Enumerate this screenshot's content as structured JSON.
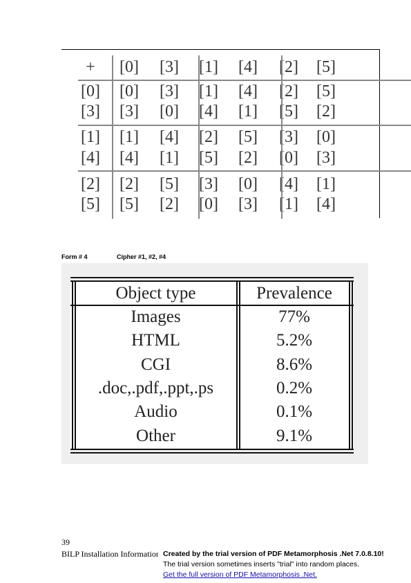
{
  "group_table": {
    "header": [
      "+",
      "[0]",
      "[3]",
      "[1]",
      "[4]",
      "[2]",
      "[5]"
    ],
    "rows": [
      [
        "[0]",
        "[0]",
        "[3]",
        "[1]",
        "[4]",
        "[2]",
        "[5]"
      ],
      [
        "[3]",
        "[3]",
        "[0]",
        "[4]",
        "[1]",
        "[5]",
        "[2]"
      ],
      [
        "[1]",
        "[1]",
        "[4]",
        "[2]",
        "[5]",
        "[3]",
        "[0]"
      ],
      [
        "[4]",
        "[4]",
        "[1]",
        "[5]",
        "[2]",
        "[0]",
        "[3]"
      ],
      [
        "[2]",
        "[2]",
        "[5]",
        "[3]",
        "[0]",
        "[4]",
        "[1]"
      ],
      [
        "[5]",
        "[5]",
        "[2]",
        "[0]",
        "[3]",
        "[1]",
        "[4]"
      ]
    ]
  },
  "caption": {
    "form": "Form # 4",
    "cipher": "Cipher #1, #2, #4"
  },
  "object_table": {
    "headers": [
      "Object type",
      "Prevalence"
    ],
    "rows": [
      [
        "Images",
        "77%"
      ],
      [
        "HTML",
        "5.2%"
      ],
      [
        "CGI",
        "8.6%"
      ],
      [
        ".doc,.pdf,.ppt,.ps",
        "0.2%"
      ],
      [
        "Audio",
        "0.1%"
      ],
      [
        "Other",
        "9.1%"
      ]
    ]
  },
  "footer": {
    "page_number": "39",
    "title": "BILP Installation Information",
    "trial_line1": "Created by the trial version of PDF Metamorphosis .Net 7.0.8.10!",
    "trial_line2": "The trial version sometimes inserts \"trial\" into random places.",
    "trial_link": "Get the full version of PDF Metamorphosis .Net."
  }
}
